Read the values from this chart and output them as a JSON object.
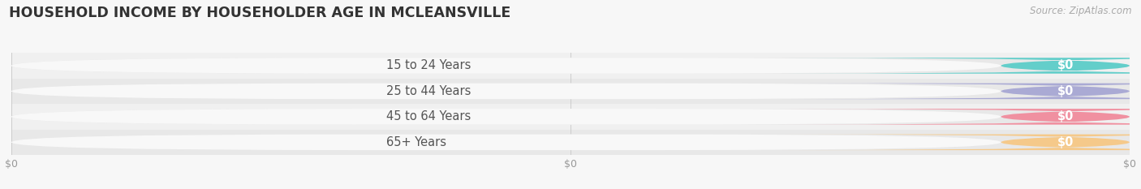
{
  "title": "HOUSEHOLD INCOME BY HOUSEHOLDER AGE IN MCLEANSVILLE",
  "source": "Source: ZipAtlas.com",
  "categories": [
    "15 to 24 Years",
    "25 to 44 Years",
    "45 to 64 Years",
    "65+ Years"
  ],
  "values": [
    0,
    0,
    0,
    0
  ],
  "bar_colors": [
    "#63ceca",
    "#aaaad4",
    "#f090a0",
    "#f5c98a"
  ],
  "bar_bg_color": "#e8e8e8",
  "bar_white_color": "#f8f8f8",
  "row_bg_colors": [
    "#f0f0f0",
    "#e8e8e8"
  ],
  "background_color": "#f7f7f7",
  "title_fontsize": 12.5,
  "source_fontsize": 8.5,
  "label_fontsize": 10.5,
  "tick_fontsize": 9,
  "tick_label_color": "#999999",
  "value_label_color": "#ffffff",
  "category_label_color": "#555555",
  "title_color": "#333333",
  "source_color": "#aaaaaa",
  "grid_color": "#cccccc"
}
